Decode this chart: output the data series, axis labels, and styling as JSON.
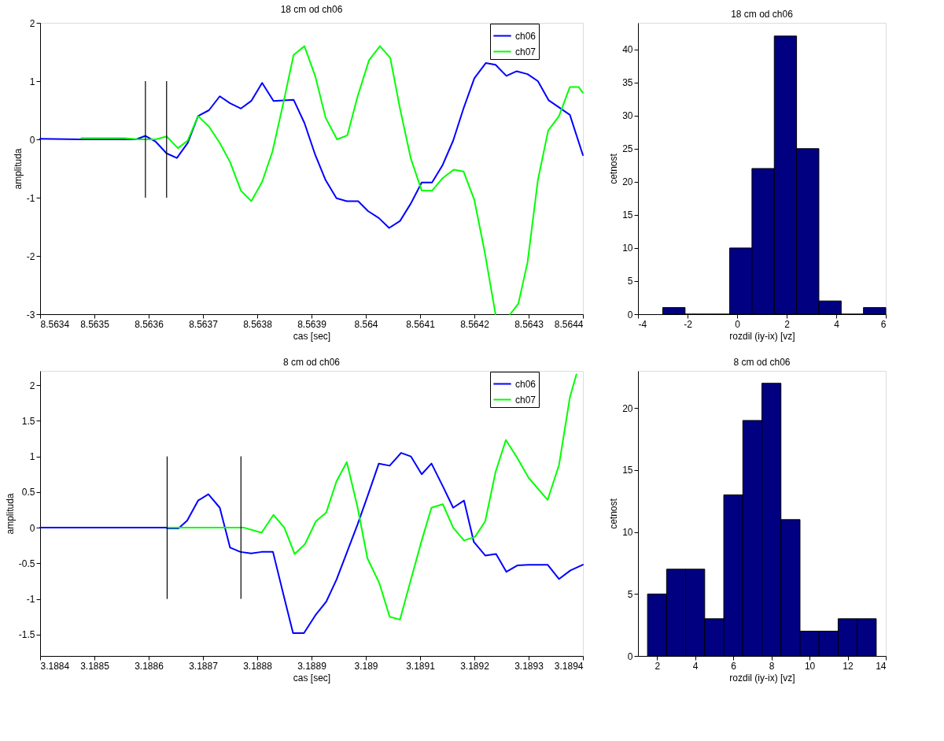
{
  "chart_data": [
    {
      "type": "line",
      "title": "18 cm od ch06",
      "xlabel": "cas [sec]",
      "ylabel": "amplituda",
      "xlim": [
        8.5634,
        8.5644
      ],
      "ylim": [
        -3,
        2
      ],
      "xticks": [
        8.5634,
        8.5635,
        8.5636,
        8.5637,
        8.5638,
        8.5639,
        8.564,
        8.5641,
        8.5642,
        8.5643,
        8.5644
      ],
      "yticks": [
        -3,
        -2,
        -1,
        0,
        1,
        2
      ],
      "grid": false,
      "legend": "top right",
      "series": [
        {
          "name": "ch06",
          "color": "#0000ff",
          "x": [
            8.5634,
            8.563476,
            8.563577,
            8.563594,
            8.563613,
            8.563633,
            8.563652,
            8.563672,
            8.563691,
            8.563711,
            8.563731,
            8.56375,
            8.56377,
            8.563789,
            8.563809,
            8.56383,
            8.563867,
            8.563887,
            8.563907,
            8.563926,
            8.563946,
            8.563965,
            8.563986,
            8.564004,
            8.564024,
            8.564043,
            8.564063,
            8.564083,
            8.564103,
            8.564122,
            8.564141,
            8.564161,
            8.56418,
            8.5642,
            8.564221,
            8.564239,
            8.564259,
            8.564278,
            8.564298,
            8.564317,
            8.564337,
            8.564356,
            8.564376,
            8.5644
          ],
          "values": [
            0.01,
            0,
            0,
            0.06,
            -0.04,
            -0.24,
            -0.32,
            -0.06,
            0.4,
            0.5,
            0.74,
            0.62,
            0.53,
            0.66,
            0.97,
            0.66,
            0.68,
            0.28,
            -0.27,
            -0.7,
            -1.01,
            -1.06,
            -1.06,
            -1.23,
            -1.35,
            -1.52,
            -1.4,
            -1.1,
            -0.74,
            -0.74,
            -0.45,
            -0.02,
            0.53,
            1.05,
            1.31,
            1.28,
            1.09,
            1.17,
            1.12,
            1.0,
            0.67,
            0.55,
            0.42,
            -0.27
          ]
        },
        {
          "name": "ch07",
          "color": "#00ff00",
          "x": [
            8.563476,
            8.563555,
            8.563581,
            8.563613,
            8.563633,
            8.563654,
            8.563672,
            8.563691,
            8.563711,
            8.563731,
            8.56375,
            8.56377,
            8.563789,
            8.563809,
            8.563828,
            8.563848,
            8.563867,
            8.563887,
            8.563907,
            8.563926,
            8.563947,
            8.563966,
            8.563985,
            8.564006,
            8.564026,
            8.564045,
            8.564063,
            8.564083,
            8.564103,
            8.564122,
            8.564141,
            8.564162,
            8.56418,
            8.5642,
            8.564219,
            8.564239,
            8.564252,
            8.564266,
            8.564281,
            8.564298,
            8.564317,
            8.564336,
            8.564356,
            8.564376,
            8.564392,
            8.5644
          ],
          "values": [
            0.02,
            0.02,
            0,
            0,
            0.05,
            -0.15,
            -0.02,
            0.4,
            0.22,
            -0.06,
            -0.39,
            -0.88,
            -1.06,
            -0.73,
            -0.21,
            0.62,
            1.45,
            1.6,
            1.08,
            0.37,
            0,
            0.07,
            0.74,
            1.36,
            1.6,
            1.4,
            0.53,
            -0.33,
            -0.88,
            -0.88,
            -0.67,
            -0.52,
            -0.55,
            -1.04,
            -1.93,
            -3.0,
            null,
            -3.0,
            -2.82,
            -2.11,
            -0.7,
            0.15,
            0.4,
            0.9,
            0.9,
            0.8
          ]
        },
        {
          "color": "#000000",
          "x": [
            8.563594,
            8.563594
          ],
          "values": [
            -1,
            1
          ]
        },
        {
          "color": "#000000",
          "x": [
            8.563633,
            8.563633
          ],
          "values": [
            -1,
            1
          ]
        }
      ]
    },
    {
      "type": "histogram",
      "title": "18 cm od ch06",
      "xlabel": "rozdil (iy-ix) [vz]",
      "ylabel": "cetnost",
      "color": "#000080",
      "bins": [
        -3.0,
        -2.1,
        -1.2,
        -0.3,
        0.6,
        1.5,
        2.4,
        3.3,
        4.2,
        5.1,
        6.0
      ],
      "values": [
        1,
        0,
        0,
        10,
        22,
        42,
        25,
        2,
        0,
        1
      ],
      "xlim": [
        -4,
        6
      ],
      "ylim": [
        0,
        44
      ],
      "xticks": [
        -4,
        -2,
        0,
        2,
        4,
        6
      ],
      "yticks": [
        0,
        5,
        10,
        15,
        20,
        25,
        30,
        35,
        40
      ],
      "grid": false
    },
    {
      "type": "line",
      "title": "8 cm od ch06",
      "xlabel": "cas [sec]",
      "ylabel": "amplituda",
      "xlim": [
        3.1884,
        3.1894
      ],
      "ylim": [
        -1.8,
        2.2
      ],
      "xticks": [
        3.1884,
        3.1885,
        3.1886,
        3.1887,
        3.1888,
        3.1889,
        3.189,
        3.1891,
        3.1892,
        3.1893,
        3.1894
      ],
      "yticks": [
        -1.5,
        -1,
        -0.5,
        0,
        0.5,
        1,
        1.5,
        2
      ],
      "grid": false,
      "legend": "top right",
      "series": [
        {
          "name": "ch06",
          "color": "#0000ff",
          "x": [
            3.1884,
            3.188632,
            3.188635,
            3.188655,
            3.188671,
            3.188691,
            3.18871,
            3.188731,
            3.18875,
            3.188769,
            3.188789,
            3.188808,
            3.188829,
            3.188848,
            3.188866,
            3.188886,
            3.188907,
            3.188927,
            3.188946,
            3.188965,
            3.188985,
            3.189005,
            3.189024,
            3.189044,
            3.189065,
            3.189083,
            3.189103,
            3.189121,
            3.189142,
            3.189161,
            3.189181,
            3.189199,
            3.18922,
            3.18924,
            3.189259,
            3.189279,
            3.189299,
            3.189335,
            3.189356,
            3.189377,
            3.1894
          ],
          "values": [
            0,
            0,
            -0.01,
            -0.01,
            0.1,
            0.38,
            0.47,
            0.28,
            -0.28,
            -0.34,
            -0.36,
            -0.34,
            -0.34,
            -0.93,
            -1.48,
            -1.48,
            -1.23,
            -1.04,
            -0.73,
            -0.35,
            0.05,
            0.48,
            0.9,
            0.87,
            1.05,
            1.0,
            0.75,
            0.9,
            0.58,
            0.28,
            0.38,
            -0.2,
            -0.39,
            -0.37,
            -0.62,
            -0.53,
            -0.52,
            -0.52,
            -0.72,
            -0.6,
            -0.52
          ]
        },
        {
          "name": "ch07",
          "color": "#00ff00",
          "x": [
            3.188635,
            3.188776,
            3.188808,
            3.18883,
            3.18885,
            3.188869,
            3.188888,
            3.188908,
            3.188927,
            3.188946,
            3.188965,
            3.188985,
            3.189003,
            3.189025,
            3.189044,
            3.189063,
            3.189083,
            3.189103,
            3.189121,
            3.189142,
            3.189161,
            3.189181,
            3.189201,
            3.18922,
            3.189239,
            3.189258,
            3.189279,
            3.1893,
            3.189335,
            3.189356,
            3.189376,
            3.189388
          ],
          "values": [
            0,
            0,
            -0.07,
            0.18,
            0,
            -0.37,
            -0.23,
            0.09,
            0.21,
            0.65,
            0.92,
            0.28,
            -0.43,
            -0.78,
            -1.25,
            -1.29,
            -0.73,
            -0.18,
            0.28,
            0.33,
            0,
            -0.18,
            -0.13,
            0.09,
            0.78,
            1.23,
            0.98,
            0.7,
            0.39,
            0.88,
            1.83,
            2.15
          ]
        },
        {
          "color": "#000000",
          "x": [
            3.188634,
            3.188634
          ],
          "values": [
            -1,
            1
          ]
        },
        {
          "color": "#000000",
          "x": [
            3.18877,
            3.18877
          ],
          "values": [
            -1,
            1
          ]
        }
      ]
    },
    {
      "type": "histogram",
      "title": "8 cm od ch06",
      "xlabel": "rozdil (iy-ix) [vz]",
      "ylabel": "cetnost",
      "color": "#000080",
      "bins": [
        1.5,
        2.5,
        3.5,
        4.5,
        5.5,
        6.5,
        7.5,
        8.5,
        9.5,
        10.5,
        11.5,
        12.5,
        13.5
      ],
      "values": [
        5,
        7,
        7,
        3,
        13,
        19,
        22,
        11,
        2,
        2,
        3,
        3
      ],
      "xlim": [
        1,
        14
      ],
      "ylim": [
        0,
        23
      ],
      "xticks": [
        2,
        4,
        6,
        8,
        10,
        12,
        14
      ],
      "yticks": [
        0,
        5,
        10,
        15,
        20
      ],
      "grid": false
    }
  ]
}
